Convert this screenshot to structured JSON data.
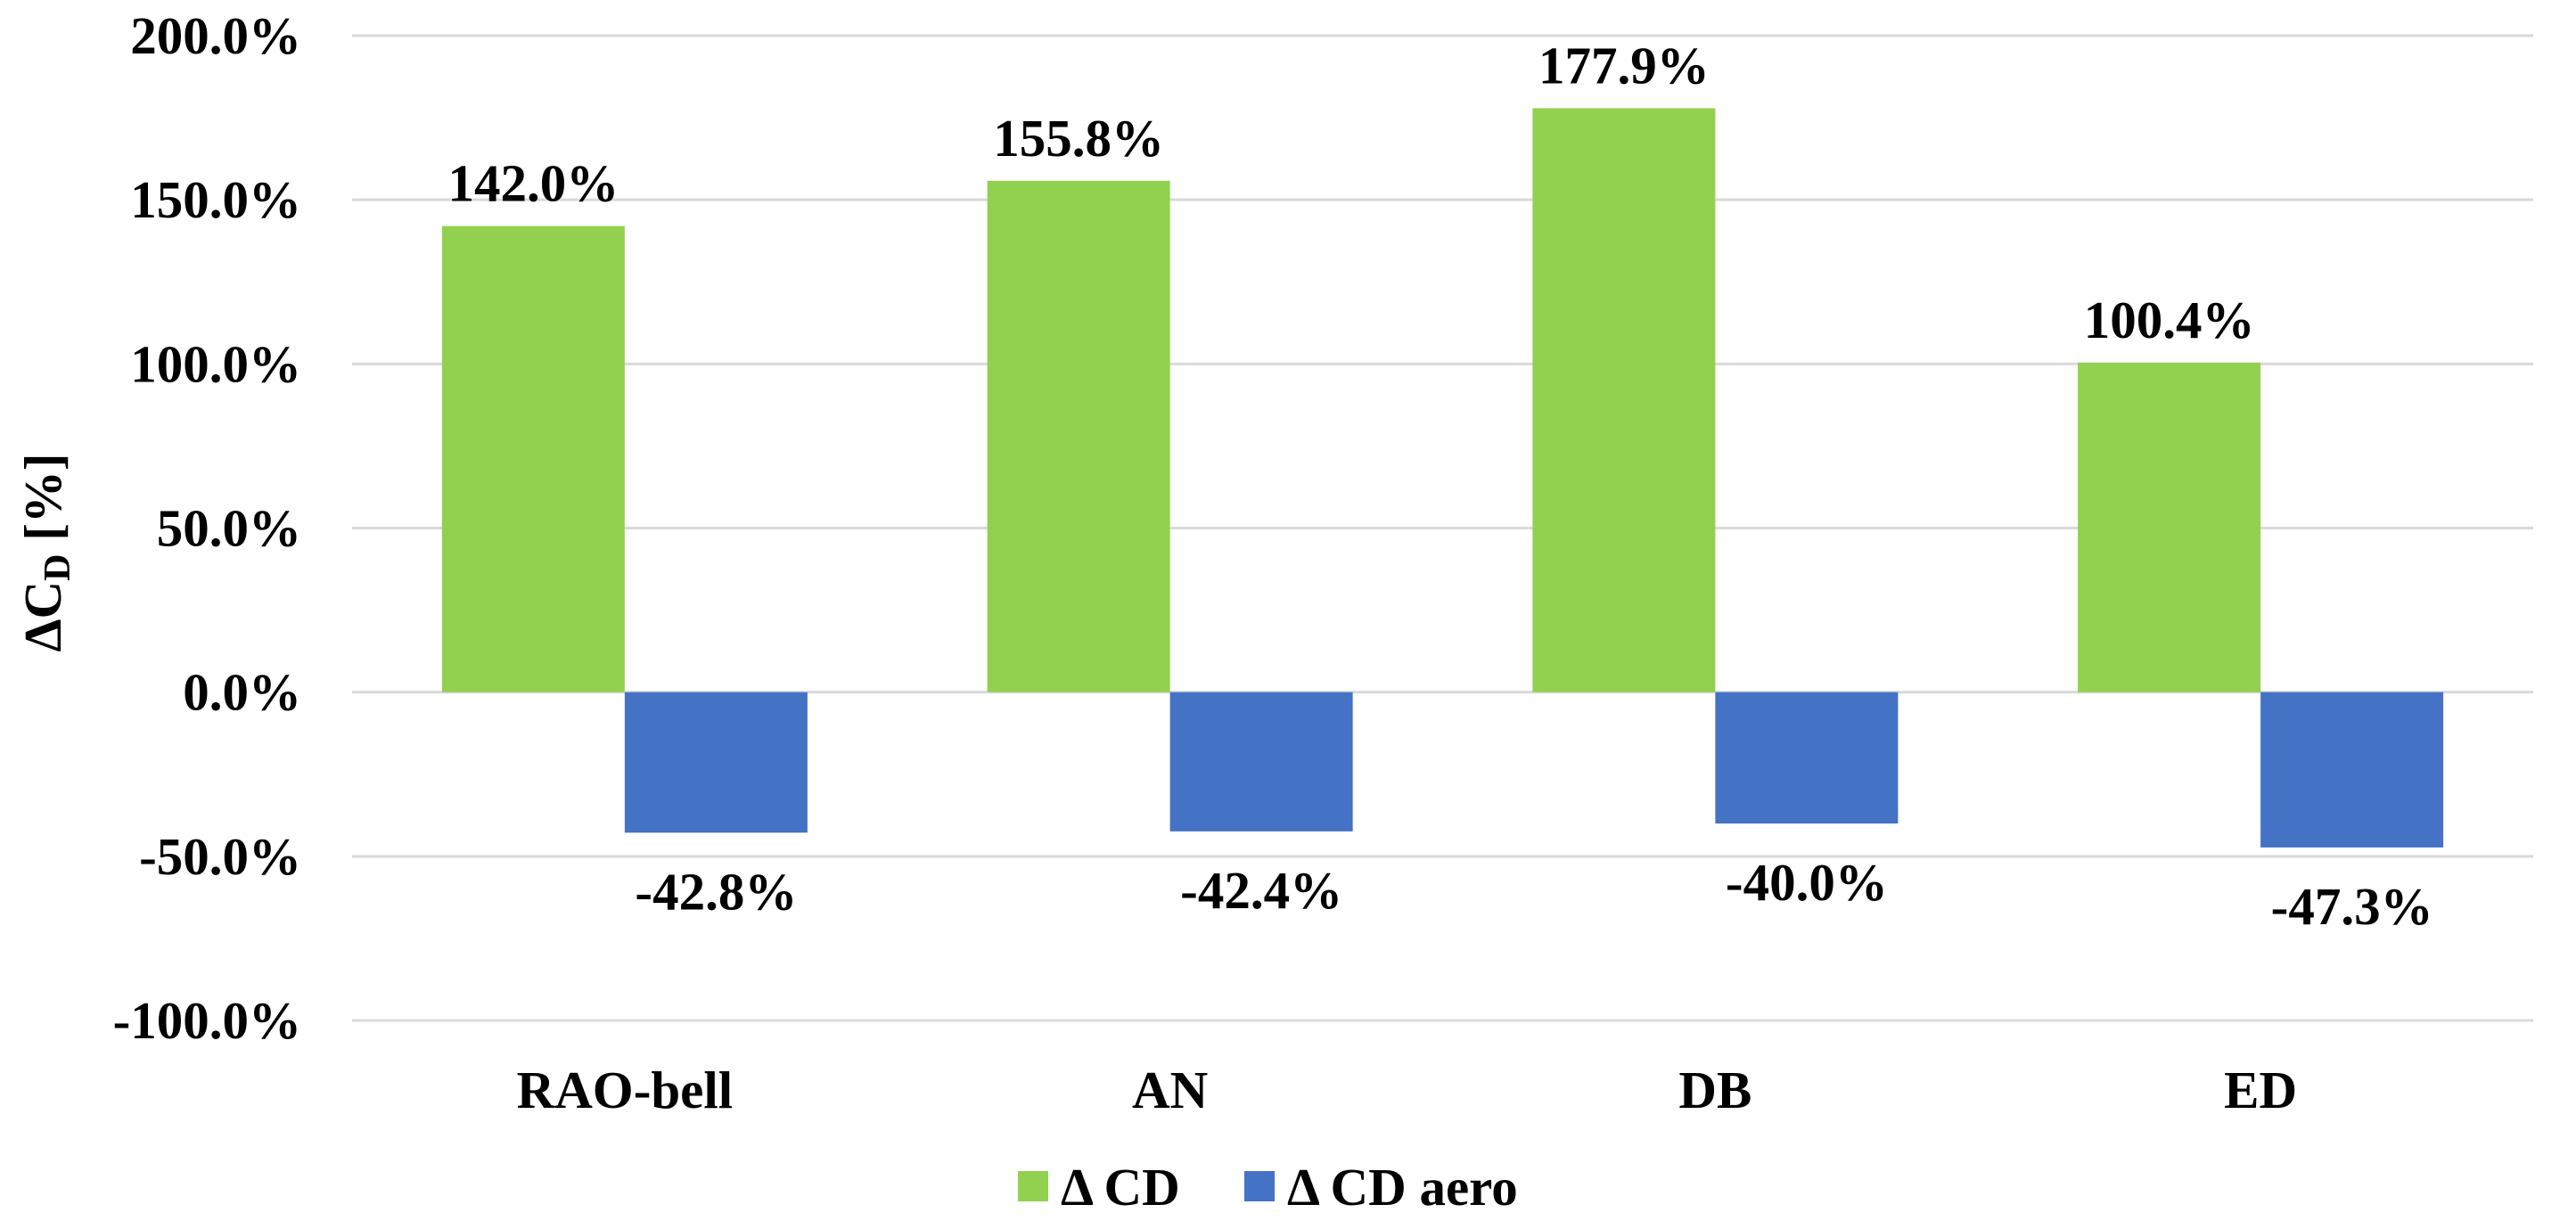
{
  "chart_data": {
    "type": "bar",
    "title": "",
    "xlabel": "",
    "ylabel": "ΔCD [%]",
    "ylabel_main": "ΔC",
    "ylabel_sub": "D",
    "ylabel_suffix": " [%]",
    "ylim": [
      -100,
      200
    ],
    "ytick_step": 50,
    "ytick_labels": [
      "200.0%",
      "150.0%",
      "100.0%",
      "50.0%",
      "0.0%",
      "-50.0%",
      "-100.0%"
    ],
    "ytick_values": [
      200,
      150,
      100,
      50,
      0,
      -50,
      -100
    ],
    "grid": true,
    "legend_position": "bottom-center",
    "categories": [
      "RAO-bell",
      "AN",
      "DB",
      "ED"
    ],
    "series": [
      {
        "name": "Δ CD",
        "color": "#92d050",
        "values": [
          142.0,
          155.8,
          177.9,
          100.4
        ],
        "labels": [
          "142.0%",
          "155.8%",
          "177.9%",
          "100.4%"
        ]
      },
      {
        "name": "Δ CD aero",
        "color": "#4472c4",
        "values": [
          -42.8,
          -42.4,
          -40.0,
          -47.3
        ],
        "labels": [
          "-42.8%",
          "-42.4%",
          "-40.0%",
          "-47.3%"
        ]
      }
    ]
  }
}
